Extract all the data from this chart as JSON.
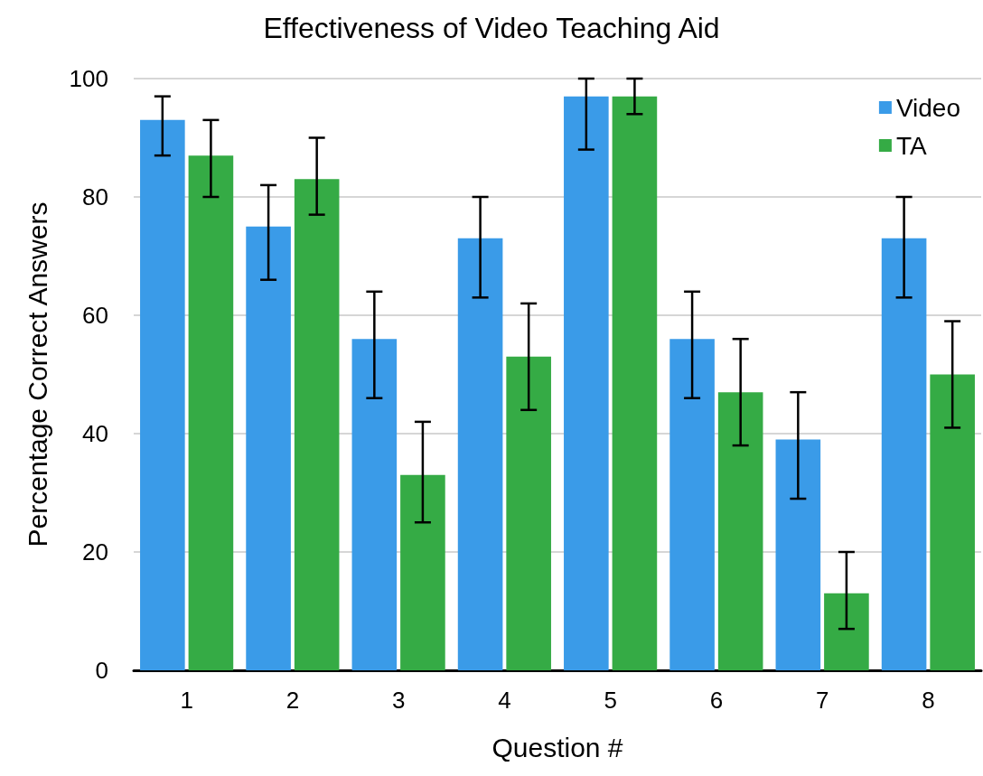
{
  "chart_data": {
    "type": "bar",
    "title": "Effectiveness of Video Teaching Aid",
    "xlabel": "Question #",
    "ylabel": "Percentage Correct Answers",
    "categories": [
      "1",
      "2",
      "3",
      "4",
      "5",
      "6",
      "7",
      "8"
    ],
    "series": [
      {
        "name": "Video",
        "color": "#3a9be8",
        "values": [
          93,
          75,
          56,
          73,
          97,
          56,
          39,
          73
        ],
        "errors": [
          [
            87,
            97
          ],
          [
            66,
            82
          ],
          [
            46,
            64
          ],
          [
            63,
            80
          ],
          [
            88,
            100
          ],
          [
            46,
            64
          ],
          [
            29,
            47
          ],
          [
            63,
            80
          ]
        ]
      },
      {
        "name": "TA",
        "color": "#35ab45",
        "values": [
          87,
          83,
          33,
          53,
          97,
          47,
          13,
          50
        ],
        "errors": [
          [
            80,
            93
          ],
          [
            77,
            90
          ],
          [
            25,
            42
          ],
          [
            44,
            62
          ],
          [
            94,
            100
          ],
          [
            38,
            56
          ],
          [
            7,
            20
          ],
          [
            41,
            59
          ]
        ]
      }
    ],
    "ylim": [
      0,
      100
    ],
    "yticks": [
      0,
      20,
      40,
      60,
      80,
      100
    ],
    "grid": "y",
    "legend": "top right"
  }
}
